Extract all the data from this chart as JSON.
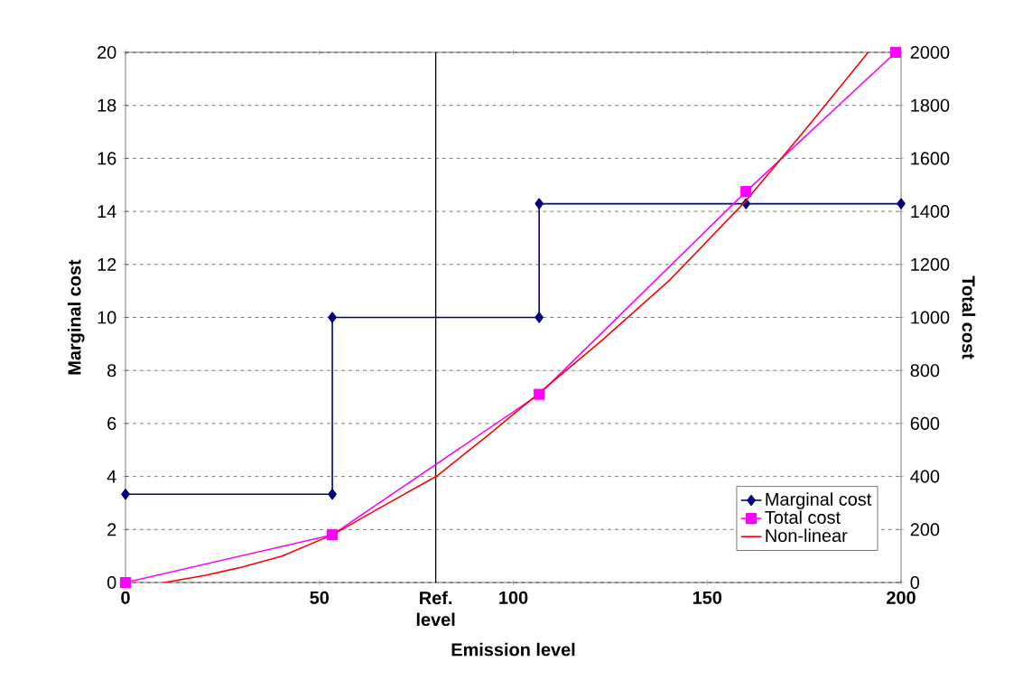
{
  "chart_data": {
    "type": "line",
    "xlabel": "Emission level",
    "ylabel": "Marginal cost",
    "y2label": "Total cost",
    "xlim": [
      0,
      200
    ],
    "xticks": [
      0,
      50,
      100,
      150,
      200
    ],
    "ylim": [
      0,
      20
    ],
    "yticks": [
      0,
      2,
      4,
      6,
      8,
      10,
      12,
      14,
      16,
      18,
      20
    ],
    "y2lim": [
      0,
      2000
    ],
    "y2ticks": [
      0,
      200,
      400,
      600,
      800,
      1000,
      1200,
      1400,
      1600,
      1800,
      2000
    ],
    "grid": "y",
    "legend": "bottom right",
    "ref_lines": [
      {
        "axis": "x",
        "value": 80,
        "label": "Ref. level",
        "color": "#000000"
      }
    ],
    "series": [
      {
        "name": "Marginal cost",
        "color": "#000080",
        "marker": "diamond",
        "x": [
          0,
          53.33,
          53.33,
          106.67,
          106.67,
          160,
          200
        ],
        "values": [
          3.33,
          3.33,
          10,
          10,
          14.29,
          14.29,
          14.29
        ]
      },
      {
        "name": "Total cost",
        "color": "#ff00ff",
        "marker": "square",
        "axis": "y2",
        "x": [
          0,
          53.33,
          106.67,
          160,
          198.6
        ],
        "values": [
          0,
          180,
          710,
          1475,
          2000
        ]
      },
      {
        "name": "Non-linear",
        "color": "#ff0000",
        "marker": "none",
        "axis": "y2",
        "x": [
          10,
          20.7,
          30,
          40.4,
          53.5,
          66,
          80.3,
          93,
          106.4,
          123,
          140.4,
          160,
          175.8,
          191.5
        ],
        "values": [
          0,
          27,
          58,
          100,
          181,
          285,
          402,
          550,
          712,
          915,
          1142,
          1440,
          1717,
          2000
        ]
      }
    ]
  }
}
